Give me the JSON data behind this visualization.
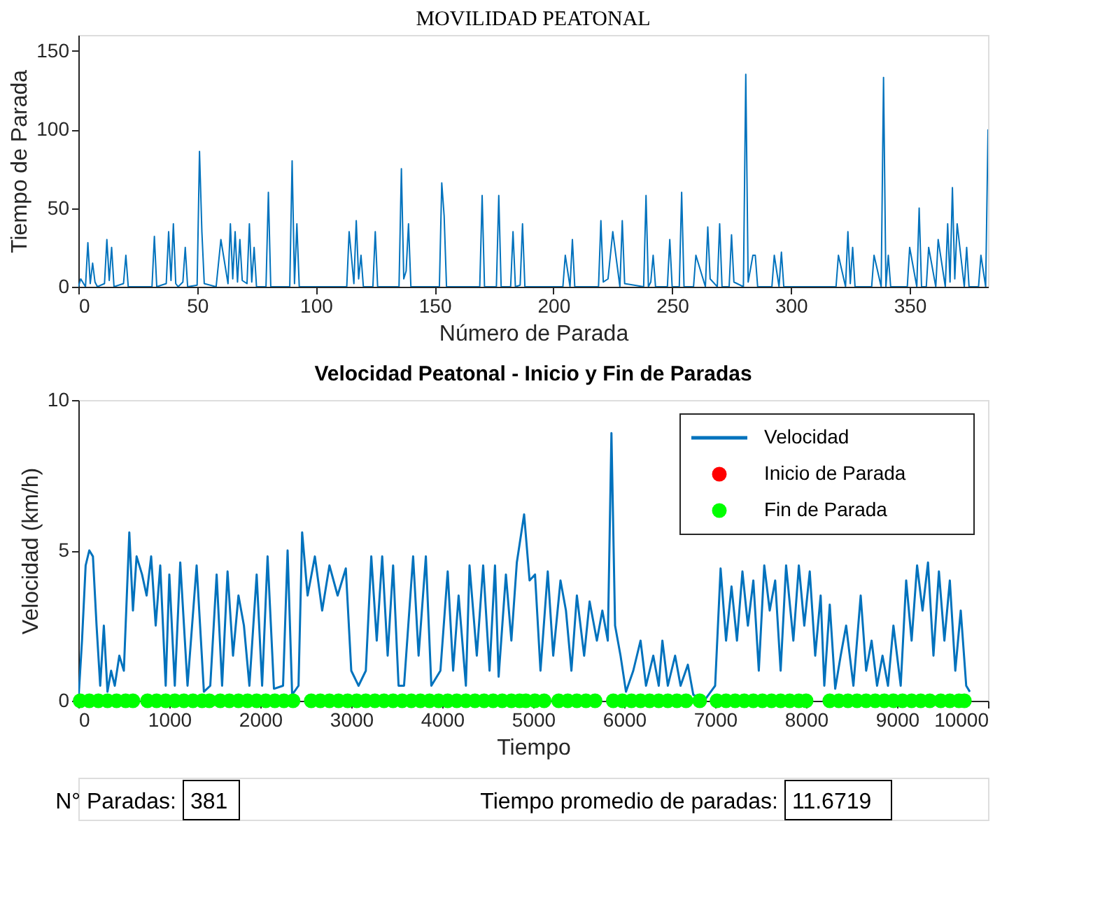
{
  "chart_data": [
    {
      "type": "line",
      "title": "MOVILIDAD PEATONAL",
      "xlabel": "Número de Parada",
      "ylabel": "Tiempo de Parada",
      "xlim": [
        0,
        383
      ],
      "ylim": [
        0,
        160
      ],
      "xticks": [
        0,
        50,
        100,
        150,
        200,
        250,
        300,
        350
      ],
      "yticks": [
        0,
        50,
        100,
        150
      ],
      "grid": false,
      "legend": false,
      "series": [
        {
          "color": "#0072bd",
          "x": [
            0,
            1,
            3,
            4,
            5,
            6,
            7,
            8,
            11,
            12,
            13,
            14,
            15,
            19,
            20,
            21,
            31,
            32,
            33,
            37,
            38,
            39,
            40,
            41,
            42,
            44,
            45,
            46,
            50,
            51,
            52,
            53,
            58,
            59,
            60,
            63,
            64,
            65,
            66,
            67,
            68,
            69,
            71,
            72,
            73,
            74,
            75,
            79,
            80,
            81,
            89,
            90,
            91,
            92,
            93,
            113,
            114,
            116,
            117,
            118,
            119,
            120,
            121,
            124,
            125,
            126,
            135,
            136,
            137,
            138,
            139,
            140,
            152,
            153,
            154,
            155,
            169,
            170,
            171,
            176,
            177,
            178,
            182,
            183,
            184,
            186,
            187,
            188,
            204,
            205,
            207,
            208,
            209,
            219,
            220,
            221,
            223,
            224,
            225,
            228,
            229,
            230,
            238,
            239,
            240,
            241,
            242,
            243,
            248,
            249,
            250,
            253,
            254,
            255,
            259,
            260,
            264,
            265,
            266,
            269,
            270,
            271,
            274,
            275,
            276,
            280,
            281,
            282,
            283,
            284,
            285,
            286,
            292,
            293,
            295,
            296,
            297,
            305,
            319,
            320,
            323,
            324,
            325,
            326,
            327,
            328,
            334,
            335,
            338,
            339,
            340,
            341,
            342,
            349,
            350,
            353,
            354,
            355,
            357,
            358,
            361,
            362,
            365,
            366,
            367,
            368,
            369,
            370,
            373,
            374,
            375,
            379,
            380,
            382,
            383
          ],
          "values": [
            0,
            5,
            0,
            28,
            2,
            15,
            3,
            0,
            2,
            30,
            4,
            25,
            0,
            2,
            20,
            0,
            0,
            32,
            0,
            2,
            35,
            4,
            40,
            2,
            0,
            3,
            25,
            0,
            1,
            86,
            35,
            2,
            0,
            null,
            30,
            2,
            40,
            5,
            35,
            3,
            30,
            4,
            2,
            40,
            3,
            25,
            0,
            0,
            60,
            0,
            0,
            80,
            2,
            40,
            0,
            0,
            35,
            2,
            42,
            5,
            20,
            0,
            0,
            0,
            35,
            0,
            0,
            75,
            5,
            10,
            40,
            0,
            0,
            66,
            45,
            0,
            0,
            58,
            0,
            0,
            58,
            0,
            0,
            35,
            0,
            1,
            40,
            0,
            0,
            20,
            0,
            30,
            0,
            0,
            42,
            3,
            5,
            20,
            35,
            0,
            42,
            2,
            0,
            58,
            0,
            3,
            20,
            0,
            0,
            30,
            0,
            0,
            60,
            0,
            0,
            20,
            0,
            38,
            5,
            0,
            40,
            0,
            0,
            33,
            3,
            0,
            135,
            3,
            null,
            20,
            20,
            0,
            0,
            20,
            0,
            22,
            0,
            0,
            0,
            20,
            0,
            35,
            2,
            25,
            0,
            0,
            0,
            20,
            0,
            133,
            0,
            20,
            0,
            0,
            25,
            0,
            50,
            0,
            0,
            25,
            0,
            30,
            0,
            40,
            3,
            63,
            5,
            40,
            0,
            25,
            0,
            0,
            20,
            0,
            100
          ]
        }
      ]
    },
    {
      "type": "line",
      "title": "Velocidad Peatonal - Inicio y Fin de Paradas",
      "xlabel": "Tiempo",
      "ylabel": "Velocidad (km/h)",
      "xlim": [
        0,
        10000
      ],
      "ylim": [
        0,
        10
      ],
      "xticks": [
        0,
        1000,
        2000,
        3000,
        4000,
        5000,
        6000,
        7000,
        8000,
        9000,
        10000
      ],
      "yticks": [
        0,
        5,
        10
      ],
      "grid": false,
      "legend": "top right",
      "annotations": [
        "N° Paradas:",
        "381",
        "Tiempo promedio de paradas:",
        "11.6719"
      ],
      "series": [
        {
          "name": "Velocidad",
          "type": "line",
          "color": "#0072bd",
          "x": [
            0,
            40,
            80,
            120,
            160,
            200,
            240,
            280,
            320,
            360,
            400,
            450,
            500,
            560,
            600,
            640,
            700,
            750,
            800,
            850,
            900,
            960,
            1000,
            1060,
            1120,
            1200,
            1300,
            1380,
            1450,
            1520,
            1580,
            1640,
            1700,
            1760,
            1820,
            1880,
            1960,
            2020,
            2080,
            2150,
            2250,
            2300,
            2350,
            2420,
            2460,
            2520,
            2600,
            2680,
            2760,
            2850,
            2940,
            3000,
            3080,
            3160,
            3220,
            3280,
            3340,
            3400,
            3460,
            3520,
            3580,
            3680,
            3740,
            3820,
            3880,
            3980,
            4060,
            4120,
            4180,
            4260,
            4300,
            4380,
            4450,
            4520,
            4580,
            4620,
            4700,
            4760,
            4820,
            4900,
            4960,
            5020,
            5080,
            5160,
            5220,
            5300,
            5360,
            5420,
            5480,
            5560,
            5620,
            5700,
            5760,
            5820,
            5860,
            5900,
            5960,
            6020,
            6100,
            6180,
            6240,
            6320,
            6380,
            6420,
            6480,
            6560,
            6620,
            6700,
            6760,
            6880,
            7000,
            7060,
            7120,
            7180,
            7240,
            7300,
            7360,
            7420,
            7480,
            7540,
            7600,
            7660,
            7720,
            7780,
            7860,
            7920,
            7980,
            8040,
            8100,
            8160,
            8200,
            8260,
            8320,
            8380,
            8440,
            8520,
            8600,
            8660,
            8720,
            8780,
            8840,
            8900,
            8960,
            9040,
            9100,
            9160,
            9220,
            9280,
            9340,
            9400,
            9460,
            9520,
            9580,
            9640,
            9700,
            9760,
            9800
          ],
          "values": [
            0,
            2,
            4.5,
            5,
            4.8,
            2.5,
            0.5,
            2.5,
            0.3,
            1,
            0.5,
            1.5,
            1,
            5.6,
            3,
            4.8,
            4.2,
            3.5,
            4.8,
            2.5,
            4.5,
            0.5,
            4.2,
            0.5,
            4.6,
            0.5,
            4.5,
            0.3,
            0.5,
            4.2,
            0.5,
            4.3,
            1.5,
            3.5,
            2.5,
            0.5,
            4.2,
            0.5,
            4.8,
            0.4,
            0.5,
            5,
            0.2,
            0.5,
            5.6,
            3.5,
            4.8,
            3,
            4.5,
            3.5,
            4.4,
            1,
            0.5,
            1,
            4.8,
            2,
            4.8,
            1.5,
            4.5,
            0.5,
            0.5,
            4.8,
            1.5,
            4.8,
            0.5,
            1,
            4.3,
            1,
            3.5,
            0.5,
            4.5,
            1.5,
            4.5,
            1,
            4.5,
            0.8,
            4.2,
            2,
            4.6,
            6.2,
            4,
            4.2,
            1,
            4.3,
            1.5,
            4,
            3,
            1,
            3.5,
            1.5,
            3.3,
            2,
            3,
            2,
            8.9,
            2.5,
            1.5,
            0.3,
            1,
            2,
            0.5,
            1.5,
            0.5,
            2,
            0.5,
            1.5,
            0.5,
            1.2,
            0.2,
            0,
            0.5,
            4.4,
            2,
            3.8,
            2,
            4.3,
            2.5,
            4,
            1,
            4.5,
            3,
            4,
            1,
            4.5,
            2,
            4.5,
            2.5,
            4.3,
            1.5,
            3.5,
            0.5,
            3.2,
            0.4,
            1.5,
            2.5,
            0.5,
            3.5,
            1,
            2,
            0.5,
            1.5,
            0.5,
            2.5,
            0.5,
            4,
            2,
            4.5,
            3,
            4.6,
            1.5,
            4.3,
            2,
            4,
            1,
            3,
            0.5,
            0.3
          ]
        },
        {
          "name": "Inicio de Parada",
          "type": "scatter",
          "marker": "circle",
          "color": "#ff0000"
        },
        {
          "name": "Fin de Parada",
          "type": "scatter",
          "marker": "circle",
          "color": "#00ff00",
          "x": [
            20,
            120,
            220,
            320,
            420,
            520,
            600,
            760,
            860,
            960,
            1060,
            1160,
            1260,
            1360,
            1440,
            1560,
            1660,
            1760,
            1860,
            1960,
            2060,
            2160,
            2260,
            2360,
            2560,
            2660,
            2760,
            2860,
            2960,
            3060,
            3160,
            3260,
            3360,
            3460,
            3560,
            3660,
            3760,
            3860,
            3960,
            4060,
            4160,
            4260,
            4360,
            4460,
            4560,
            4660,
            4760,
            4850,
            4920,
            5020,
            5120,
            5280,
            5380,
            5480,
            5580,
            5680,
            5880,
            5980,
            6080,
            6180,
            6280,
            6380,
            6480,
            6580,
            6680,
            6830,
            7020,
            7120,
            7220,
            7320,
            7420,
            7520,
            7620,
            7720,
            7820,
            7920,
            8000,
            8260,
            8360,
            8460,
            8560,
            8660,
            8760,
            8860,
            8960,
            9060,
            9160,
            9260,
            9360,
            9480,
            9580,
            9680,
            9740
          ],
          "values": [
            0,
            0,
            0,
            0,
            0,
            0,
            0,
            0,
            0,
            0,
            0,
            0,
            0,
            0,
            0,
            0,
            0,
            0,
            0,
            0,
            0,
            0,
            0,
            0,
            0,
            0,
            0,
            0,
            0,
            0,
            0,
            0,
            0,
            0,
            0,
            0,
            0,
            0,
            0,
            0,
            0,
            0,
            0,
            0,
            0,
            0,
            0,
            0,
            0,
            0,
            0,
            0,
            0,
            0,
            0,
            0,
            0,
            0,
            0,
            0,
            0,
            0,
            0,
            0,
            0,
            0,
            0,
            0,
            0,
            0,
            0,
            0,
            0,
            0,
            0,
            0,
            0,
            0,
            0,
            0,
            0,
            0,
            0,
            0,
            0,
            0,
            0,
            0,
            0,
            0,
            0,
            0,
            0
          ]
        }
      ]
    }
  ]
}
